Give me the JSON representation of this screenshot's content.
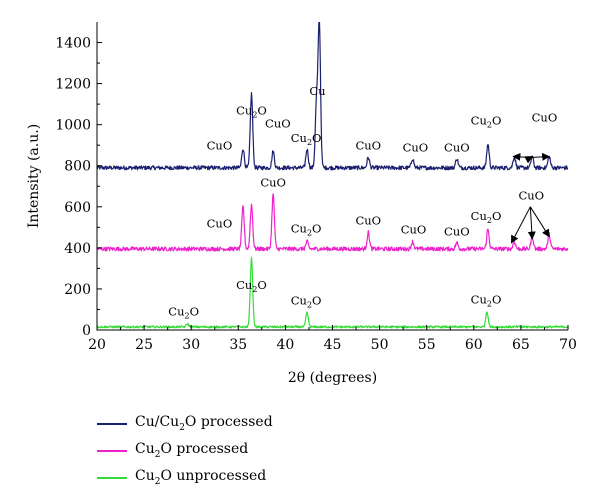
{
  "chart_data": {
    "type": "line",
    "xlabel": "2θ (degrees)",
    "ylabel": "Intensity (a.u.)",
    "xlim": [
      20,
      70
    ],
    "ylim": [
      0,
      1500
    ],
    "xticks": [
      20,
      25,
      30,
      35,
      40,
      45,
      50,
      55,
      60,
      65,
      70
    ],
    "yticks": [
      0,
      200,
      400,
      600,
      800,
      1000,
      1200,
      1400
    ],
    "grid": false,
    "legend_position": "below",
    "series": [
      {
        "name": "Cu/Cu2O processed",
        "color": "#1a1f6e",
        "baseline": 790,
        "noise": 10,
        "peaks": [
          [
            35.5,
            885
          ],
          [
            36.4,
            1150
          ],
          [
            38.7,
            870
          ],
          [
            42.3,
            880
          ],
          [
            43.3,
            1100
          ],
          [
            43.6,
            1500
          ],
          [
            48.8,
            840
          ],
          [
            53.5,
            835
          ],
          [
            58.2,
            835
          ],
          [
            61.5,
            905
          ],
          [
            64.3,
            845
          ],
          [
            66.2,
            845
          ],
          [
            68.0,
            845
          ]
        ]
      },
      {
        "name": "Cu2O processed",
        "color": "#ee22cc",
        "baseline": 395,
        "noise": 10,
        "peaks": [
          [
            35.5,
            600
          ],
          [
            36.4,
            610
          ],
          [
            38.7,
            660
          ],
          [
            42.3,
            430
          ],
          [
            48.8,
            475
          ],
          [
            53.5,
            430
          ],
          [
            58.2,
            425
          ],
          [
            61.5,
            490
          ],
          [
            64.3,
            430
          ],
          [
            66.2,
            455
          ],
          [
            68.0,
            465
          ]
        ]
      },
      {
        "name": "Cu2O unprocessed",
        "color": "#33dd33",
        "baseline": 15,
        "noise": 5,
        "peaks": [
          [
            29.6,
            30
          ],
          [
            36.4,
            350
          ],
          [
            42.3,
            85
          ],
          [
            61.4,
            90
          ]
        ]
      }
    ],
    "annotations": [
      {
        "text": "Cu",
        "sub": "2",
        "rest": "O",
        "x": 36.4,
        "y": 1050
      },
      {
        "text": "CuO",
        "sub": "",
        "rest": "",
        "x": 33.0,
        "y": 880
      },
      {
        "text": "CuO",
        "sub": "",
        "rest": "",
        "x": 39.2,
        "y": 985
      },
      {
        "text": "Cu",
        "sub": "2",
        "rest": "O",
        "x": 42.2,
        "y": 915
      },
      {
        "text": "Cu",
        "sub": "",
        "rest": "",
        "x": 43.4,
        "y": 1145
      },
      {
        "text": "CuO",
        "sub": "",
        "rest": "",
        "x": 48.8,
        "y": 880
      },
      {
        "text": "CuO",
        "sub": "",
        "rest": "",
        "x": 53.8,
        "y": 870
      },
      {
        "text": "CuO",
        "sub": "",
        "rest": "",
        "x": 58.2,
        "y": 870
      },
      {
        "text": "Cu",
        "sub": "2",
        "rest": "O",
        "x": 61.3,
        "y": 1000
      },
      {
        "text": "CuO",
        "sub": "",
        "rest": "",
        "x": 67.5,
        "y": 1015
      },
      {
        "text": "CuO",
        "sub": "",
        "rest": "",
        "x": 33.0,
        "y": 500
      },
      {
        "text": "CuO",
        "sub": "",
        "rest": "",
        "x": 38.7,
        "y": 700
      },
      {
        "text": "Cu",
        "sub": "2",
        "rest": "O",
        "x": 42.2,
        "y": 475
      },
      {
        "text": "CuO",
        "sub": "",
        "rest": "",
        "x": 48.8,
        "y": 515
      },
      {
        "text": "CuO",
        "sub": "",
        "rest": "",
        "x": 53.6,
        "y": 470
      },
      {
        "text": "CuO",
        "sub": "",
        "rest": "",
        "x": 58.2,
        "y": 460
      },
      {
        "text": "Cu",
        "sub": "2",
        "rest": "O",
        "x": 61.3,
        "y": 535
      },
      {
        "text": "CuO",
        "sub": "",
        "rest": "",
        "x": 66.1,
        "y": 635
      },
      {
        "text": "Cu",
        "sub": "2",
        "rest": "O",
        "x": 29.2,
        "y": 70
      },
      {
        "text": "Cu",
        "sub": "2",
        "rest": "O",
        "x": 36.4,
        "y": 200
      },
      {
        "text": "Cu",
        "sub": "2",
        "rest": "O",
        "x": 42.2,
        "y": 125
      },
      {
        "text": "Cu",
        "sub": "2",
        "rest": "O",
        "x": 61.3,
        "y": 130
      }
    ],
    "arrows": [
      {
        "from": [
          66.0,
          840
        ],
        "to": [
          64.2,
          845
        ]
      },
      {
        "from": [
          66.0,
          840
        ],
        "to": [
          66.2,
          845
        ]
      },
      {
        "from": [
          66.0,
          840
        ],
        "to": [
          68.0,
          845
        ]
      },
      {
        "from": [
          66.0,
          600
        ],
        "to": [
          64.0,
          425
        ]
      },
      {
        "from": [
          66.0,
          600
        ],
        "to": [
          66.2,
          445
        ]
      },
      {
        "from": [
          66.0,
          600
        ],
        "to": [
          68.0,
          455
        ]
      }
    ]
  },
  "legend": [
    {
      "pre": "Cu/Cu",
      "sub": "2",
      "post": "O processed",
      "color": "#1a1f6e"
    },
    {
      "pre": "Cu",
      "sub": "2",
      "post": "O processed",
      "color": "#ee22cc"
    },
    {
      "pre": "Cu",
      "sub": "2",
      "post": "O unprocessed",
      "color": "#33dd33"
    }
  ]
}
